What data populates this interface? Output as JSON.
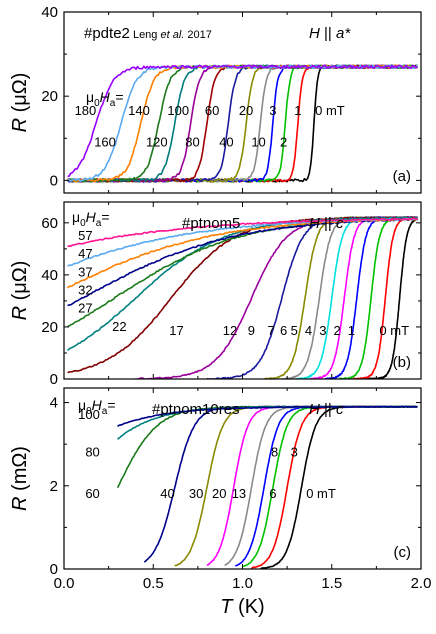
{
  "figure": {
    "x_axis": {
      "label_italic": "T",
      "label_unit": " (K)",
      "lim": [
        0,
        2
      ],
      "ticks": [
        0,
        0.5,
        1,
        1.5,
        2
      ],
      "tick_labels": [
        "0.0",
        "0.5",
        "1.0",
        "1.5",
        "2.0"
      ]
    }
  },
  "chart_data": [
    {
      "type": "line",
      "panel_label": "(a)",
      "sample": "#pdte2",
      "reference": "Leng et al. 2017",
      "orientation": "H || a*",
      "field_header": "μ0Ha=",
      "ylabel_italic": "R",
      "ylabel_unit": " (μΩ)",
      "ylim": [
        -3,
        40
      ],
      "yticks": [
        0,
        20,
        40
      ],
      "grid": false,
      "normal_value": 27,
      "series": [
        {
          "name": "0 mT",
          "color": "#000000",
          "tc": 1.4,
          "width": 0.01,
          "start": 0.02
        },
        {
          "name": "1",
          "color": "#ff0000",
          "tc": 1.31,
          "width": 0.012,
          "start": 0.02
        },
        {
          "name": "2",
          "color": "#00c000",
          "tc": 1.24,
          "width": 0.013,
          "start": 0.02
        },
        {
          "name": "3",
          "color": "#0000ff",
          "tc": 1.17,
          "width": 0.014,
          "start": 0.02
        },
        {
          "name": "10",
          "color": "#8a8a8a",
          "tc": 1.1,
          "width": 0.016,
          "start": 0.02
        },
        {
          "name": "20",
          "color": "#8a8a00",
          "tc": 1.02,
          "width": 0.018,
          "start": 0.02
        },
        {
          "name": "40",
          "color": "#1a1aa0",
          "tc": 0.92,
          "width": 0.02,
          "start": 0.02
        },
        {
          "name": "60",
          "color": "#a00000",
          "tc": 0.8,
          "width": 0.022,
          "start": 0.02
        },
        {
          "name": "80",
          "color": "#9a009a",
          "tc": 0.71,
          "width": 0.025,
          "start": 0.02
        },
        {
          "name": "100",
          "color": "#007a7a",
          "tc": 0.62,
          "width": 0.028,
          "start": 0.02
        },
        {
          "name": "120",
          "color": "#1c7a1c",
          "tc": 0.53,
          "width": 0.032,
          "start": 0.02
        },
        {
          "name": "140",
          "color": "#ff7f00",
          "tc": 0.43,
          "width": 0.037,
          "start": 0.02
        },
        {
          "name": "160",
          "color": "#5aaaf0",
          "tc": 0.32,
          "width": 0.044,
          "start": 0.02
        },
        {
          "name": "180",
          "color": "#9900ff",
          "tc": 0.18,
          "width": 0.05,
          "start": 0.02
        }
      ],
      "field_labels": [
        {
          "text": "180",
          "x": 0.12,
          "y": 16.5
        },
        {
          "text": "160",
          "x": 0.23,
          "y": 9.0
        },
        {
          "text": "140",
          "x": 0.42,
          "y": 16.5
        },
        {
          "text": "120",
          "x": 0.52,
          "y": 9.0
        },
        {
          "text": "100",
          "x": 0.64,
          "y": 16.5
        },
        {
          "text": "80",
          "x": 0.72,
          "y": 9.0
        },
        {
          "text": "60",
          "x": 0.83,
          "y": 16.5
        },
        {
          "text": "40",
          "x": 0.91,
          "y": 9.0
        },
        {
          "text": "20",
          "x": 1.02,
          "y": 16.5
        },
        {
          "text": "10",
          "x": 1.09,
          "y": 9.0
        },
        {
          "text": "3",
          "x": 1.17,
          "y": 16.5
        },
        {
          "text": "2",
          "x": 1.23,
          "y": 9.0
        },
        {
          "text": "1",
          "x": 1.31,
          "y": 16.5
        },
        {
          "text": "0 mT",
          "x": 1.49,
          "y": 16.5
        }
      ]
    },
    {
      "type": "line",
      "panel_label": "(b)",
      "sample": "#ptnom5",
      "orientation": "H || c",
      "field_header": "μ0Ha=",
      "ylabel_italic": "R",
      "ylabel_unit": " (μΩ)",
      "ylim": [
        0,
        68
      ],
      "yticks": [
        0,
        20,
        40,
        60
      ],
      "grid": false,
      "normal_value": 62,
      "series": [
        {
          "name": "0 mT",
          "color": "#000000",
          "tc": 1.88,
          "width": 0.02,
          "start": 1.7
        },
        {
          "name": "1",
          "color": "#ff0000",
          "tc": 1.8,
          "width": 0.022,
          "start": 1.62
        },
        {
          "name": "2",
          "color": "#00c000",
          "tc": 1.72,
          "width": 0.024,
          "start": 1.54
        },
        {
          "name": "3",
          "color": "#0000ff",
          "tc": 1.64,
          "width": 0.026,
          "start": 1.46
        },
        {
          "name": "4",
          "color": "#ff00ff",
          "tc": 1.57,
          "width": 0.028,
          "start": 1.38
        },
        {
          "name": "5",
          "color": "#00e0e0",
          "tc": 1.5,
          "width": 0.03,
          "start": 1.3
        },
        {
          "name": "6",
          "color": "#8a8a8a",
          "tc": 1.43,
          "width": 0.032,
          "start": 1.22
        },
        {
          "name": "7",
          "color": "#8a8a00",
          "tc": 1.35,
          "width": 0.034,
          "start": 1.12
        },
        {
          "name": "9",
          "color": "#1a1aa0",
          "tc": 1.22,
          "width": 0.06,
          "start": 0.8
        },
        {
          "name": "12",
          "color": "#9a009a",
          "tc": 1.05,
          "width": 0.1,
          "start": 0.4
        },
        {
          "name": "17",
          "color": "#800000",
          "tc": 0.6,
          "width": 0.18,
          "start": 0.02
        },
        {
          "name": "22",
          "color": "#008080",
          "tc": 0.4,
          "width": 0.25,
          "start": 0.02
        },
        {
          "name": "27",
          "color": "#1a7a1a",
          "tc": 0.28,
          "width": 0.35,
          "start": 0.02
        },
        {
          "name": "32",
          "color": "#00008b",
          "tc": 0.1,
          "width": 0.42,
          "start": 0.02
        },
        {
          "name": "37",
          "color": "#ff7f00",
          "tc": -0.1,
          "width": 0.45,
          "start": 0.02
        },
        {
          "name": "47",
          "color": "#5aaaf0",
          "tc": -0.4,
          "width": 0.5,
          "start": 0.02
        },
        {
          "name": "57",
          "color": "#ff1493",
          "tc": -0.9,
          "width": 0.6,
          "start": 0.02
        }
      ],
      "field_labels": [
        {
          "text": "57",
          "x": 0.12,
          "y": 55.0
        },
        {
          "text": "47",
          "x": 0.12,
          "y": 48.0
        },
        {
          "text": "37",
          "x": 0.12,
          "y": 41.0
        },
        {
          "text": "32",
          "x": 0.12,
          "y": 34.0
        },
        {
          "text": "27",
          "x": 0.12,
          "y": 27.0
        },
        {
          "text": "22",
          "x": 0.31,
          "y": 20.0
        },
        {
          "text": "17",
          "x": 0.63,
          "y": 18.5
        },
        {
          "text": "12",
          "x": 0.93,
          "y": 18.5
        },
        {
          "text": "9",
          "x": 1.05,
          "y": 18.5
        },
        {
          "text": "7",
          "x": 1.16,
          "y": 18.5
        },
        {
          "text": "6",
          "x": 1.23,
          "y": 18.5
        },
        {
          "text": "5",
          "x": 1.29,
          "y": 18.5
        },
        {
          "text": "4",
          "x": 1.37,
          "y": 18.5
        },
        {
          "text": "3",
          "x": 1.45,
          "y": 18.5
        },
        {
          "text": "2",
          "x": 1.53,
          "y": 18.5
        },
        {
          "text": "1",
          "x": 1.61,
          "y": 18.5
        },
        {
          "text": "0 mT",
          "x": 1.85,
          "y": 18.5
        }
      ]
    },
    {
      "type": "line",
      "panel_label": "(c)",
      "sample": "#ptnom10res",
      "orientation": "H || c",
      "field_header": "μ0Ha=",
      "ylabel_italic": "R",
      "ylabel_unit": " (mΩ)",
      "ylim": [
        0,
        4.35
      ],
      "yticks": [
        0,
        2,
        4
      ],
      "grid": false,
      "normal_value": 3.9,
      "series": [
        {
          "name": "0 mT",
          "color": "#000000",
          "tc": 1.33,
          "width": 0.04,
          "start": 1.1
        },
        {
          "name": "3",
          "color": "#ff0000",
          "tc": 1.25,
          "width": 0.04,
          "start": 1.05
        },
        {
          "name": "6",
          "color": "#00c000",
          "tc": 1.17,
          "width": 0.04,
          "start": 1.0
        },
        {
          "name": "8",
          "color": "#0000ff",
          "tc": 1.12,
          "width": 0.04,
          "start": 0.96
        },
        {
          "name": "13",
          "color": "#8a8a8a",
          "tc": 1.05,
          "width": 0.04,
          "start": 0.9
        },
        {
          "name": "20",
          "color": "#ff00ff",
          "tc": 0.95,
          "width": 0.04,
          "start": 0.8
        },
        {
          "name": "30",
          "color": "#8a8a00",
          "tc": 0.8,
          "width": 0.045,
          "start": 0.62
        },
        {
          "name": "40",
          "color": "#00008b",
          "tc": 0.62,
          "width": 0.055,
          "start": 0.45
        },
        {
          "name": "60",
          "color": "#1a7a1a",
          "tc": 0.3,
          "width": 0.11,
          "start": 0.3
        },
        {
          "name": "80",
          "color": "#008080",
          "tc": 0.05,
          "width": 0.18,
          "start": 0.3
        },
        {
          "name": "100",
          "color": "#00008b",
          "tc": -0.2,
          "width": 0.25,
          "start": 0.3
        }
      ],
      "field_labels": [
        {
          "text": "100",
          "x": 0.14,
          "y": 3.7
        },
        {
          "text": "80",
          "x": 0.16,
          "y": 2.8
        },
        {
          "text": "60",
          "x": 0.16,
          "y": 1.8
        },
        {
          "text": "40",
          "x": 0.58,
          "y": 1.8
        },
        {
          "text": "30",
          "x": 0.74,
          "y": 1.8
        },
        {
          "text": "20",
          "x": 0.87,
          "y": 1.8
        },
        {
          "text": "13",
          "x": 0.98,
          "y": 1.8
        },
        {
          "text": "8",
          "x": 1.18,
          "y": 2.8
        },
        {
          "text": "6",
          "x": 1.17,
          "y": 1.8
        },
        {
          "text": "3",
          "x": 1.29,
          "y": 2.8
        },
        {
          "text": "0 mT",
          "x": 1.44,
          "y": 1.8
        }
      ]
    }
  ]
}
